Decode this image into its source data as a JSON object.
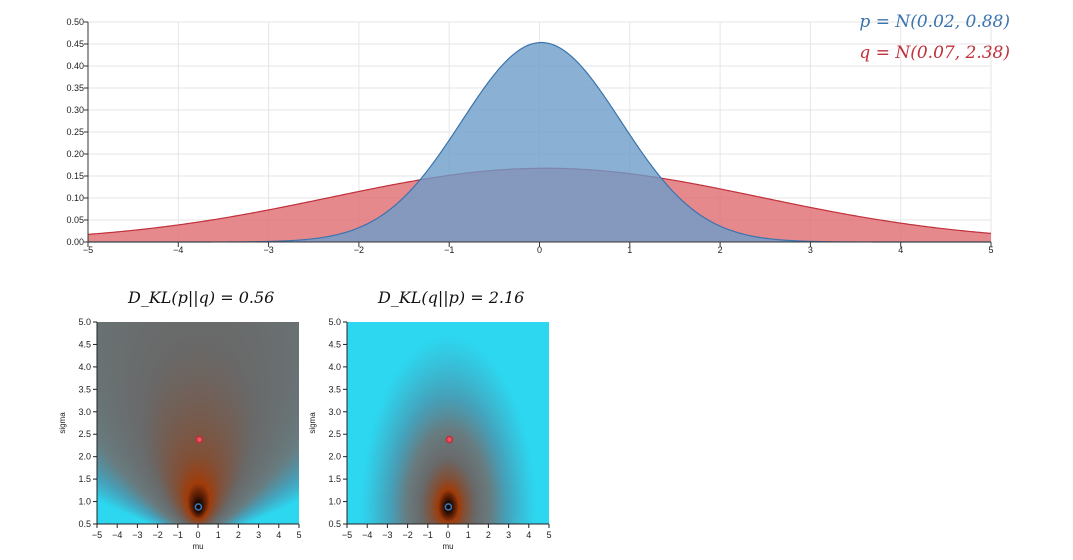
{
  "legend": {
    "p_label": "p = N(0.02, 0.88)",
    "q_label": "q = N(0.07, 2.38)"
  },
  "colors": {
    "p_line": "#3a74ae",
    "p_fill": "#6d9cc9",
    "q_line": "#c0303a",
    "q_fill": "#e06c70"
  },
  "chart_data": [
    {
      "type": "area",
      "series": [
        {
          "name": "p = N(0.02, 0.88)",
          "mu": 0.02,
          "sigma": 0.88
        },
        {
          "name": "q = N(0.07, 2.38)",
          "mu": 0.07,
          "sigma": 2.38
        }
      ],
      "xlim": [
        -5,
        5
      ],
      "ylim": [
        0,
        0.5
      ],
      "x_ticks": [
        "−5",
        "−4",
        "−3",
        "−2",
        "−1",
        "0",
        "1",
        "2",
        "3",
        "4",
        "5"
      ],
      "y_ticks": [
        "0.00",
        "0.05",
        "0.10",
        "0.15",
        "0.20",
        "0.25",
        "0.30",
        "0.35",
        "0.40",
        "0.45",
        "0.50"
      ],
      "grid": true
    },
    {
      "type": "heatmap",
      "title": "D_KL(p||q) = 0.56",
      "xlabel": "mu",
      "ylabel": "sigma",
      "xlim": [
        -5,
        5
      ],
      "ylim": [
        0.5,
        5
      ],
      "x_ticks": [
        "−5",
        "−4",
        "−3",
        "−2",
        "−1",
        "0",
        "1",
        "2",
        "3",
        "4",
        "5"
      ],
      "y_ticks": [
        "0.5",
        "1.0",
        "1.5",
        "2.0",
        "2.5",
        "3.0",
        "3.5",
        "4.0",
        "4.5",
        "5.0"
      ],
      "markers": [
        {
          "name": "q",
          "mu": 0.07,
          "sigma": 2.38
        },
        {
          "name": "p",
          "mu": 0.02,
          "sigma": 0.88
        }
      ]
    },
    {
      "type": "heatmap",
      "title": "D_KL(q||p) = 2.16",
      "xlabel": "mu",
      "ylabel": "sigma",
      "xlim": [
        -5,
        5
      ],
      "ylim": [
        0.5,
        5
      ],
      "x_ticks": [
        "−5",
        "−4",
        "−3",
        "−2",
        "−1",
        "0",
        "1",
        "2",
        "3",
        "4",
        "5"
      ],
      "y_ticks": [
        "0.5",
        "1.0",
        "1.5",
        "2.0",
        "2.5",
        "3.0",
        "3.5",
        "4.0",
        "4.5",
        "5.0"
      ],
      "markers": [
        {
          "name": "q",
          "mu": 0.07,
          "sigma": 2.38
        },
        {
          "name": "p",
          "mu": 0.02,
          "sigma": 0.88
        }
      ]
    }
  ]
}
